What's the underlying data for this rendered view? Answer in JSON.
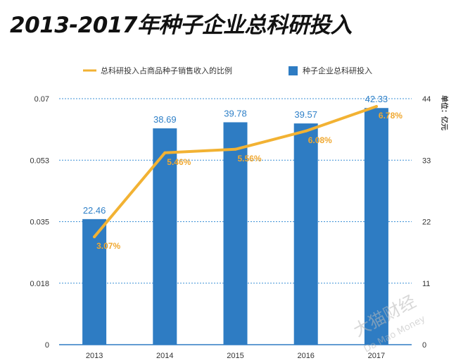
{
  "chart_data": {
    "type": "bar",
    "title": "2013-2017年种子企业总科研投入",
    "categories": [
      "2013",
      "2014",
      "2015",
      "2016",
      "2017"
    ],
    "series": [
      {
        "name": "种子企业总科研投入",
        "type": "bar",
        "axis": "right",
        "values": [
          22.46,
          38.69,
          39.78,
          39.57,
          42.33
        ],
        "labels": [
          "22.46",
          "38.69",
          "39.78",
          "39.57",
          "42.33"
        ],
        "color": "#2e7cc3"
      },
      {
        "name": "总科研投入占商品种子销售收入的比例",
        "type": "line",
        "axis": "left",
        "values": [
          0.0307,
          0.0546,
          0.0556,
          0.0608,
          0.0678
        ],
        "labels": [
          "3.07%",
          "5.46%",
          "5.56%",
          "6.08%",
          "6.78%"
        ],
        "color": "#f2b233"
      }
    ],
    "y_left": {
      "ticks": [
        "0.07",
        "0.053",
        "0.035",
        "0.018",
        "0"
      ],
      "ylim": [
        0,
        0.07
      ]
    },
    "y_right": {
      "ticks": [
        "44",
        "33",
        "22",
        "11",
        "0"
      ],
      "ylim": [
        0,
        44
      ],
      "label": "单位：亿元"
    },
    "grid": true,
    "legend_position": "top"
  },
  "watermark": {
    "cn": "大猫财经",
    "en": "Da Mao Money"
  }
}
